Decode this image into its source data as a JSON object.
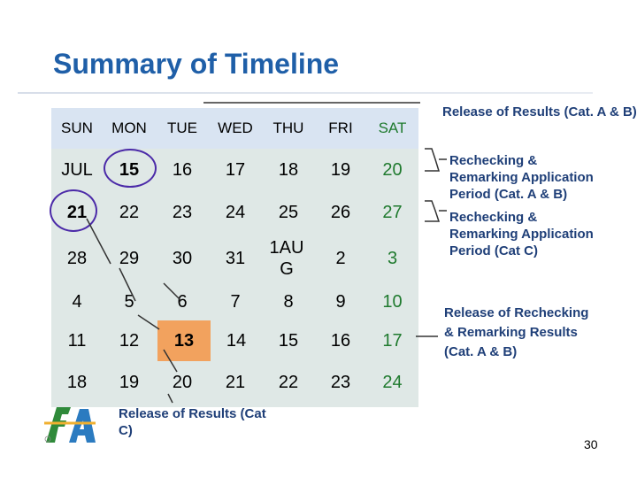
{
  "title": "Summary of Timeline",
  "weekdays": [
    "SUN",
    "MON",
    "TUE",
    "WED",
    "THU",
    "FRI",
    "SAT"
  ],
  "rows": [
    [
      "JUL",
      "15",
      "16",
      "17",
      "18",
      "19",
      "20"
    ],
    [
      "21",
      "22",
      "23",
      "24",
      "25",
      "26",
      "27"
    ],
    [
      "28",
      "29",
      "30",
      "31",
      "1AU G",
      "2",
      "3"
    ],
    [
      "4",
      "5",
      "6",
      "7",
      "8",
      "9",
      "10"
    ],
    [
      "11",
      "12",
      "13",
      "14",
      "15",
      "16",
      "17"
    ],
    [
      "18",
      "19",
      "20",
      "21",
      "22",
      "23",
      "24"
    ]
  ],
  "notes": {
    "release_ab": "Release of Results (Cat. A & B)",
    "recheck_ab": "Rechecking & Remarking Application Period (Cat. A & B)",
    "recheck_c": "Rechecking & Remarking Application Period (Cat C)",
    "release_recheck": "Release of Rechecking & Remarking Results (Cat. A & B)",
    "release_c": "Release of Results (Cat C)"
  },
  "page_number": "30",
  "colors": {
    "title": "#1f5fa8",
    "note": "#1f3f78",
    "highlight": "#f2a25e",
    "circle": "#4b2aa8",
    "green": "#1f7a2e"
  }
}
